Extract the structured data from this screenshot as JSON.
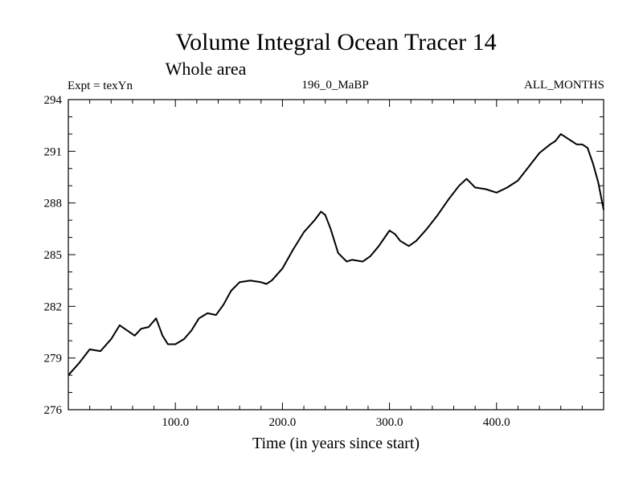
{
  "title": "Volume Integral Ocean Tracer 14",
  "subtitle": "Whole area",
  "experiment": "Expt = texYn",
  "run_id": "196_0_MaBP",
  "months": "ALL_MONTHS",
  "colors": {
    "background": "#ffffff",
    "line": "#000000",
    "axes": "#000000"
  },
  "chart_data": {
    "type": "line",
    "title": "Volume Integral Ocean Tracer 14",
    "subtitle": "Whole area",
    "xlabel": "Time (in years since start)",
    "ylabel": "",
    "xlim": [
      0,
      500
    ],
    "ylim": [
      276,
      294
    ],
    "x_ticks": [
      100,
      200,
      300,
      400
    ],
    "x_tick_labels": [
      "100.0",
      "200.0",
      "300.0",
      "400.0"
    ],
    "y_ticks": [
      276,
      279,
      282,
      285,
      288,
      291,
      294
    ],
    "y_tick_labels": [
      "276",
      "279",
      "282",
      "285",
      "288",
      "291",
      "294"
    ],
    "grid": false,
    "series": [
      {
        "x": [
          0,
          10,
          20,
          30,
          40,
          48,
          55,
          62,
          68,
          75,
          82,
          88,
          93,
          100,
          108,
          115,
          122,
          130,
          138,
          145,
          152,
          160,
          170,
          180,
          185,
          190,
          200,
          210,
          220,
          230,
          236,
          240,
          245,
          252,
          260,
          265,
          275,
          282,
          290,
          300,
          305,
          310,
          318,
          325,
          335,
          345,
          355,
          365,
          372,
          380,
          390,
          400,
          410,
          420,
          430,
          440,
          450,
          455,
          460,
          465,
          470,
          475,
          480,
          485,
          490,
          495,
          500
        ],
        "y": [
          278.0,
          278.7,
          279.5,
          279.4,
          280.1,
          280.9,
          280.6,
          280.3,
          280.7,
          280.8,
          281.3,
          280.3,
          279.8,
          279.8,
          280.1,
          280.6,
          281.3,
          281.6,
          281.5,
          282.1,
          282.9,
          283.4,
          283.5,
          283.4,
          283.3,
          283.5,
          284.2,
          285.3,
          286.3,
          287.0,
          287.5,
          287.3,
          286.5,
          285.1,
          284.6,
          284.7,
          284.6,
          284.9,
          285.5,
          286.4,
          286.2,
          285.8,
          285.5,
          285.8,
          286.5,
          287.3,
          288.2,
          289.0,
          289.4,
          288.9,
          288.8,
          288.6,
          288.9,
          289.3,
          290.1,
          290.9,
          291.4,
          291.6,
          292.0,
          291.8,
          291.6,
          291.4,
          291.4,
          291.2,
          290.3,
          289.2,
          287.6
        ]
      }
    ]
  }
}
